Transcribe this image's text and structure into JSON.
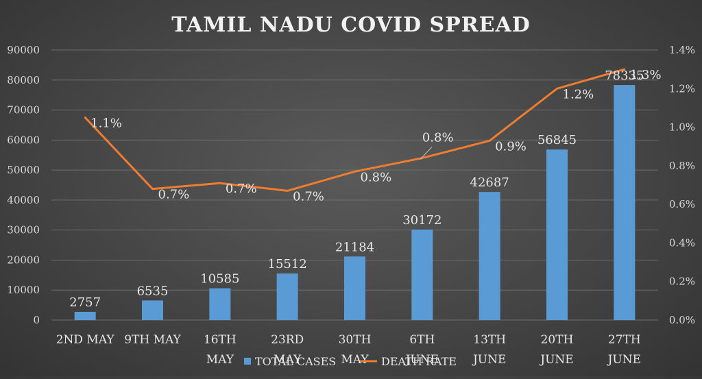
{
  "chart_data": {
    "type": "bar",
    "title": "TAMIL NADU COVID SPREAD",
    "categories": [
      [
        "2ND MAY"
      ],
      [
        "9TH MAY"
      ],
      [
        "16TH",
        "MAY"
      ],
      [
        "23RD",
        "MAY"
      ],
      [
        "30TH",
        "MAY"
      ],
      [
        "6TH",
        "JUNE"
      ],
      [
        "13TH",
        "JUNE"
      ],
      [
        "20TH",
        "JUNE"
      ],
      [
        "27TH",
        "JUNE"
      ]
    ],
    "series": [
      {
        "name": "TOTAL CASES",
        "type": "bar",
        "axis": "left",
        "color": "#5b9bd5",
        "values": [
          2757,
          6535,
          10585,
          15512,
          21184,
          30172,
          42687,
          56845,
          78335
        ],
        "labels": [
          "2757",
          "6535",
          "10585",
          "15512",
          "21184",
          "30172",
          "42687",
          "56845",
          "78335"
        ]
      },
      {
        "name": "DEATH RATE",
        "type": "line",
        "axis": "right",
        "color": "#ed7d31",
        "values": [
          1.05,
          0.68,
          0.71,
          0.67,
          0.77,
          0.84,
          0.93,
          1.2,
          1.3
        ],
        "labels": [
          "1.1%",
          "0.7%",
          "0.7%",
          "0.7%",
          "0.8%",
          "0.8%",
          "0.9%",
          "1.2%",
          "1.3%"
        ]
      }
    ],
    "y_left": {
      "min": 0,
      "max": 90000,
      "ticks": [
        "0",
        "10000",
        "20000",
        "30000",
        "40000",
        "50000",
        "60000",
        "70000",
        "80000",
        "90000"
      ]
    },
    "y_right": {
      "min": 0,
      "max": 1.4,
      "ticks": [
        "0.0%",
        "0.2%",
        "0.4%",
        "0.6%",
        "0.8%",
        "1.0%",
        "1.2%",
        "1.4%"
      ]
    },
    "grid": true,
    "legend": "bottom"
  }
}
